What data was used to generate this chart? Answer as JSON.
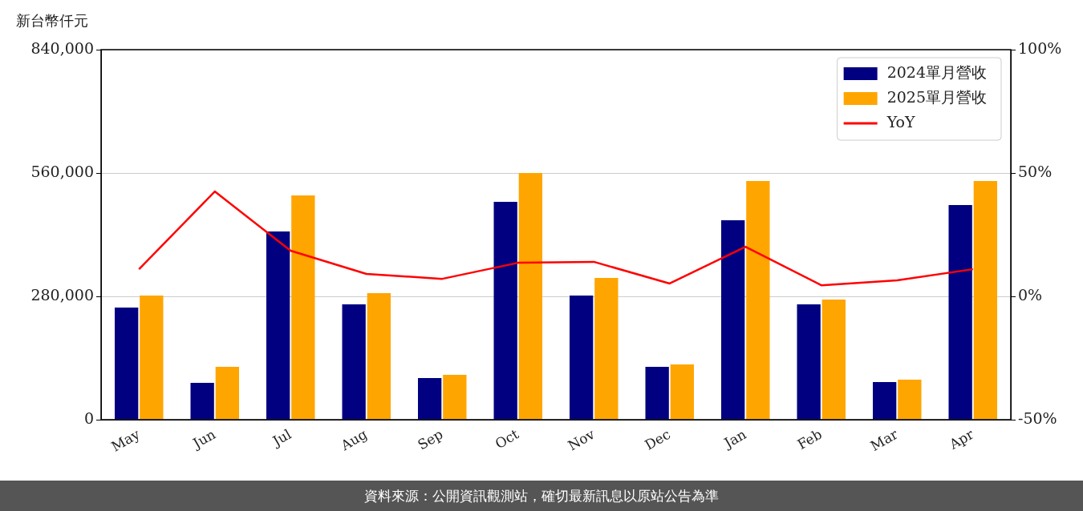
{
  "chart_data": {
    "type": "bar",
    "ylabel": "新台幣仟元",
    "categories": [
      "May",
      "Jun",
      "Jul",
      "Aug",
      "Sep",
      "Oct",
      "Nov",
      "Dec",
      "Jan",
      "Feb",
      "Mar",
      "Apr"
    ],
    "series": [
      {
        "name": "2024單月營收",
        "color": "#000080",
        "values": [
          254500,
          83600,
          427300,
          261800,
          94500,
          494500,
          281800,
          120000,
          452700,
          261800,
          85500,
          487300
        ]
      },
      {
        "name": "2025單月營收",
        "color": "#ffa500",
        "values": [
          281800,
          120000,
          509100,
          287300,
          101800,
          560000,
          321800,
          125500,
          541800,
          272700,
          90900,
          541800
        ]
      },
      {
        "name": "YoY",
        "type": "line",
        "axis": "y2",
        "color": "#ff0000",
        "values": [
          11.0,
          42.5,
          18.5,
          9.1,
          7.1,
          13.6,
          14.0,
          5.2,
          20.1,
          4.5,
          6.5,
          11.0
        ]
      }
    ],
    "ylim": [
      0,
      840000
    ],
    "yticks": [
      {
        "value": 0,
        "label": "0"
      },
      {
        "value": 280000,
        "label": "280,000"
      },
      {
        "value": 560000,
        "label": "560,000"
      },
      {
        "value": 840000,
        "label": "840,000"
      }
    ],
    "y2lim": [
      -50,
      100
    ],
    "y2ticks": [
      {
        "value": -50,
        "label": "-50%"
      },
      {
        "value": 0,
        "label": "0%"
      },
      {
        "value": 50,
        "label": "50%"
      },
      {
        "value": 100,
        "label": "100%"
      }
    ],
    "grid": "y",
    "legend": "top right",
    "marker": "none",
    "annotations": [
      "資料來源：公開資訊觀測站，確切最新訊息以原站公告為準"
    ]
  }
}
